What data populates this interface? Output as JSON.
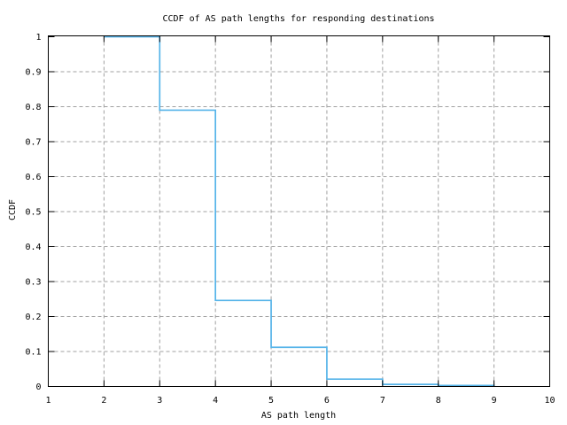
{
  "chart_data": {
    "type": "line",
    "line_style": "steps-post",
    "title": "CCDF of AS path lengths for responding destinations",
    "xlabel": "AS path length",
    "ylabel": "CCDF",
    "xlim": [
      1,
      10
    ],
    "ylim": [
      0,
      1
    ],
    "xticks": [
      1,
      2,
      3,
      4,
      5,
      6,
      7,
      8,
      9,
      10
    ],
    "xtick_labels": [
      "1",
      "2",
      "3",
      "4",
      "5",
      "6",
      "7",
      "8",
      "9",
      "10"
    ],
    "yticks": [
      0,
      0.1,
      0.2,
      0.3,
      0.4,
      0.5,
      0.6,
      0.7,
      0.8,
      0.9,
      1
    ],
    "ytick_labels": [
      "0",
      "0.1",
      "0.2",
      "0.3",
      "0.4",
      "0.5",
      "0.6",
      "0.7",
      "0.8",
      "0.9",
      "1"
    ],
    "grid": true,
    "grid_style": "dashed",
    "legend_position": "none",
    "series": [
      {
        "name": "CCDF of AS path length",
        "color": "#56b4e9",
        "points": [
          [
            2,
            1.0
          ],
          [
            3,
            0.79
          ],
          [
            4,
            0.246
          ],
          [
            5,
            0.112
          ],
          [
            6,
            0.021
          ],
          [
            7,
            0.006
          ],
          [
            8,
            0.003
          ],
          [
            9,
            0.001
          ]
        ]
      }
    ],
    "colors": {
      "axis": "#000000",
      "grid": "#a0a0a0",
      "text": "#000000",
      "background": "#ffffff",
      "line": "#56b4e9"
    }
  }
}
